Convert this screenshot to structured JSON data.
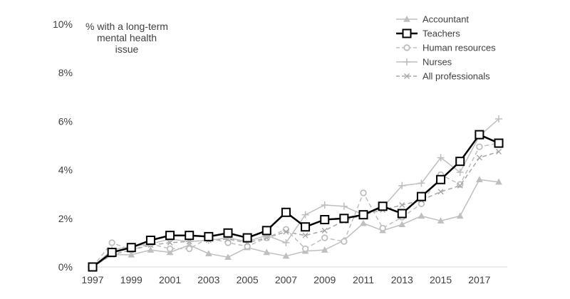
{
  "chart_data": {
    "type": "line",
    "title": "",
    "xlabel": "",
    "ylabel": "",
    "annotation": [
      "% with a long-term",
      "mental health",
      "issue"
    ],
    "x": [
      1997,
      1998,
      1999,
      2000,
      2001,
      2002,
      2003,
      2004,
      2005,
      2006,
      2007,
      2008,
      2009,
      2010,
      2011,
      2012,
      2013,
      2014,
      2015,
      2016,
      2017,
      2018
    ],
    "x_tick_labels": [
      "1997",
      "1999",
      "2001",
      "2003",
      "2005",
      "2007",
      "2009",
      "2011",
      "2013",
      "2015",
      "2017"
    ],
    "x_ticks": [
      1997,
      1999,
      2001,
      2003,
      2005,
      2007,
      2009,
      2011,
      2013,
      2015,
      2017
    ],
    "xlim": [
      1997,
      2018
    ],
    "ylim": [
      0,
      10
    ],
    "y_ticks": [
      0,
      2,
      4,
      6,
      8,
      10
    ],
    "y_tick_labels": [
      "0%",
      "2%",
      "4%",
      "6%",
      "8%",
      "10%"
    ],
    "grid": false,
    "legend_position": "top-right",
    "series": [
      {
        "name": "Accountant",
        "color": "#bfbfbf",
        "dash": "solid",
        "marker": "triangle",
        "width": 1.5,
        "values": [
          0,
          0.5,
          0.5,
          0.7,
          0.6,
          0.9,
          0.55,
          0.4,
          0.8,
          0.6,
          0.45,
          0.65,
          0.7,
          1.1,
          1.8,
          1.5,
          1.75,
          2.1,
          1.9,
          2.1,
          3.6,
          3.5
        ]
      },
      {
        "name": "Teachers",
        "color": "#000000",
        "dash": "solid",
        "marker": "square",
        "width": 2.5,
        "values": [
          0,
          0.6,
          0.8,
          1.1,
          1.3,
          1.3,
          1.25,
          1.4,
          1.2,
          1.5,
          2.25,
          1.65,
          1.95,
          2.0,
          2.15,
          2.5,
          2.2,
          2.9,
          3.6,
          4.35,
          5.45,
          5.1
        ]
      },
      {
        "name": "Human resources",
        "color": "#bfbfbf",
        "dash": "dashed",
        "marker": "circle",
        "width": 1.5,
        "values": [
          0,
          1.0,
          0.7,
          0.95,
          0.75,
          0.75,
          1.2,
          1.0,
          0.85,
          1.2,
          1.55,
          0.75,
          1.2,
          1.05,
          3.05,
          1.6,
          2.05,
          2.6,
          3.8,
          3.4,
          4.95,
          5.1
        ]
      },
      {
        "name": "Nurses",
        "color": "#bfbfbf",
        "dash": "solid",
        "marker": "plus",
        "width": 1.5,
        "values": [
          0,
          0.7,
          0.85,
          0.95,
          1.15,
          1.05,
          1.1,
          1.2,
          1.05,
          1.3,
          1.0,
          2.15,
          2.55,
          2.5,
          2.15,
          2.45,
          3.35,
          3.45,
          4.5,
          3.9,
          5.4,
          6.1
        ]
      },
      {
        "name": "All professionals",
        "color": "#a6a6a6",
        "dash": "dashed",
        "marker": "x",
        "width": 1.5,
        "values": [
          0,
          0.5,
          0.7,
          0.9,
          1.0,
          1.05,
          1.1,
          1.15,
          1.0,
          1.2,
          1.45,
          1.3,
          1.5,
          1.9,
          2.15,
          2.35,
          2.55,
          2.75,
          3.1,
          3.35,
          4.5,
          4.75
        ]
      }
    ]
  }
}
